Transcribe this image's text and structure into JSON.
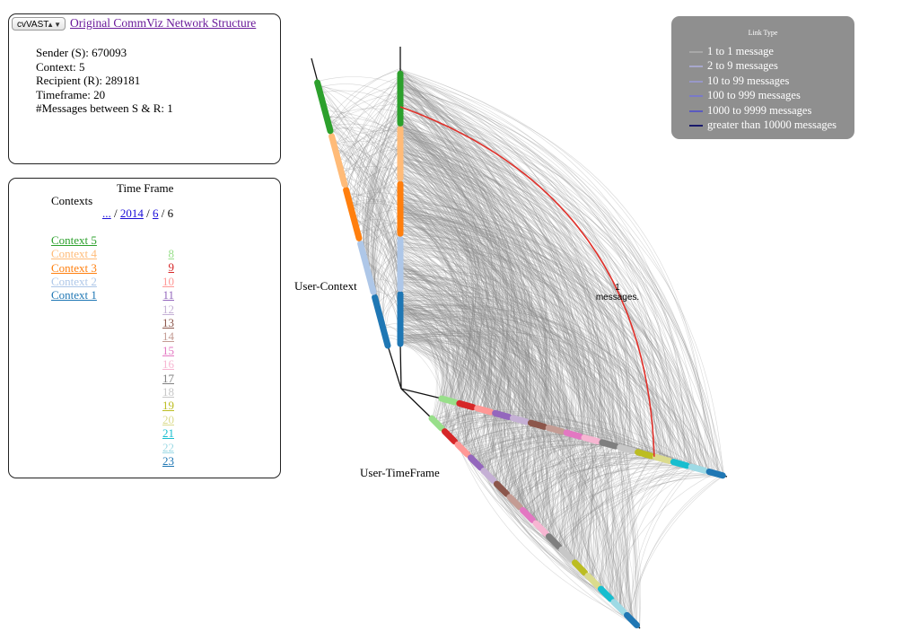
{
  "info_panel": {
    "dataset_select": "cvVAST",
    "title_link": "Original CommViz Network Structure",
    "sender": "Sender (S): 670093",
    "context": "Context: 5",
    "recipient": "Recipient (R): 289181",
    "timeframe": "Timeframe: 20",
    "messages": "#Messages between S & R: 1"
  },
  "timeframe_panel": {
    "heading": "Time Frame",
    "contexts_heading": "Contexts",
    "breadcrumb": {
      "root": "...",
      "year": "2014",
      "month": "6",
      "sep": "/",
      "current": "6"
    },
    "contexts": [
      {
        "label": "Context 5",
        "color": "#2ca02c"
      },
      {
        "label": "Context 4",
        "color": "#ffbb78"
      },
      {
        "label": "Context 3",
        "color": "#ff7f0e"
      },
      {
        "label": "Context 2",
        "color": "#aec7e8"
      },
      {
        "label": "Context 1",
        "color": "#1f77b4"
      }
    ],
    "timeframes": [
      {
        "label": "8",
        "color": "#98df8a"
      },
      {
        "label": "9",
        "color": "#d62728"
      },
      {
        "label": "10",
        "color": "#ff9896"
      },
      {
        "label": "11",
        "color": "#9467bd"
      },
      {
        "label": "12",
        "color": "#c5b0d5"
      },
      {
        "label": "13",
        "color": "#8c564b"
      },
      {
        "label": "14",
        "color": "#c49c94"
      },
      {
        "label": "15",
        "color": "#e377c2"
      },
      {
        "label": "16",
        "color": "#f7b6d2"
      },
      {
        "label": "17",
        "color": "#7f7f7f"
      },
      {
        "label": "18",
        "color": "#c7c7c7"
      },
      {
        "label": "19",
        "color": "#bcbd22"
      },
      {
        "label": "20",
        "color": "#dbdb8d"
      },
      {
        "label": "21",
        "color": "#17becf"
      },
      {
        "label": "22",
        "color": "#9edae5"
      },
      {
        "label": "23",
        "color": "#1f77b4"
      }
    ]
  },
  "legend": {
    "title": "Link Type",
    "items": [
      {
        "label": "1 to 1 message",
        "color": "#a8a8a8"
      },
      {
        "label": "2 to 9 messages",
        "color": "#a8a8cc"
      },
      {
        "label": "10 to 99 messages",
        "color": "#9898c8"
      },
      {
        "label": "100 to 999 messages",
        "color": "#7a7ac8"
      },
      {
        "label": "1000 to 9999 messages",
        "color": "#5a5ac0"
      },
      {
        "label": "greater than 10000 messages",
        "color": "#1a1a6a"
      }
    ]
  },
  "diagram": {
    "axis_user_context": "User-Context",
    "axis_user_timeframe": "User-TimeFrame",
    "highlight_label_count": "1",
    "highlight_label_unit": "messages.",
    "link_color": "#8a8a8a",
    "highlight_color": "#e0302a"
  }
}
